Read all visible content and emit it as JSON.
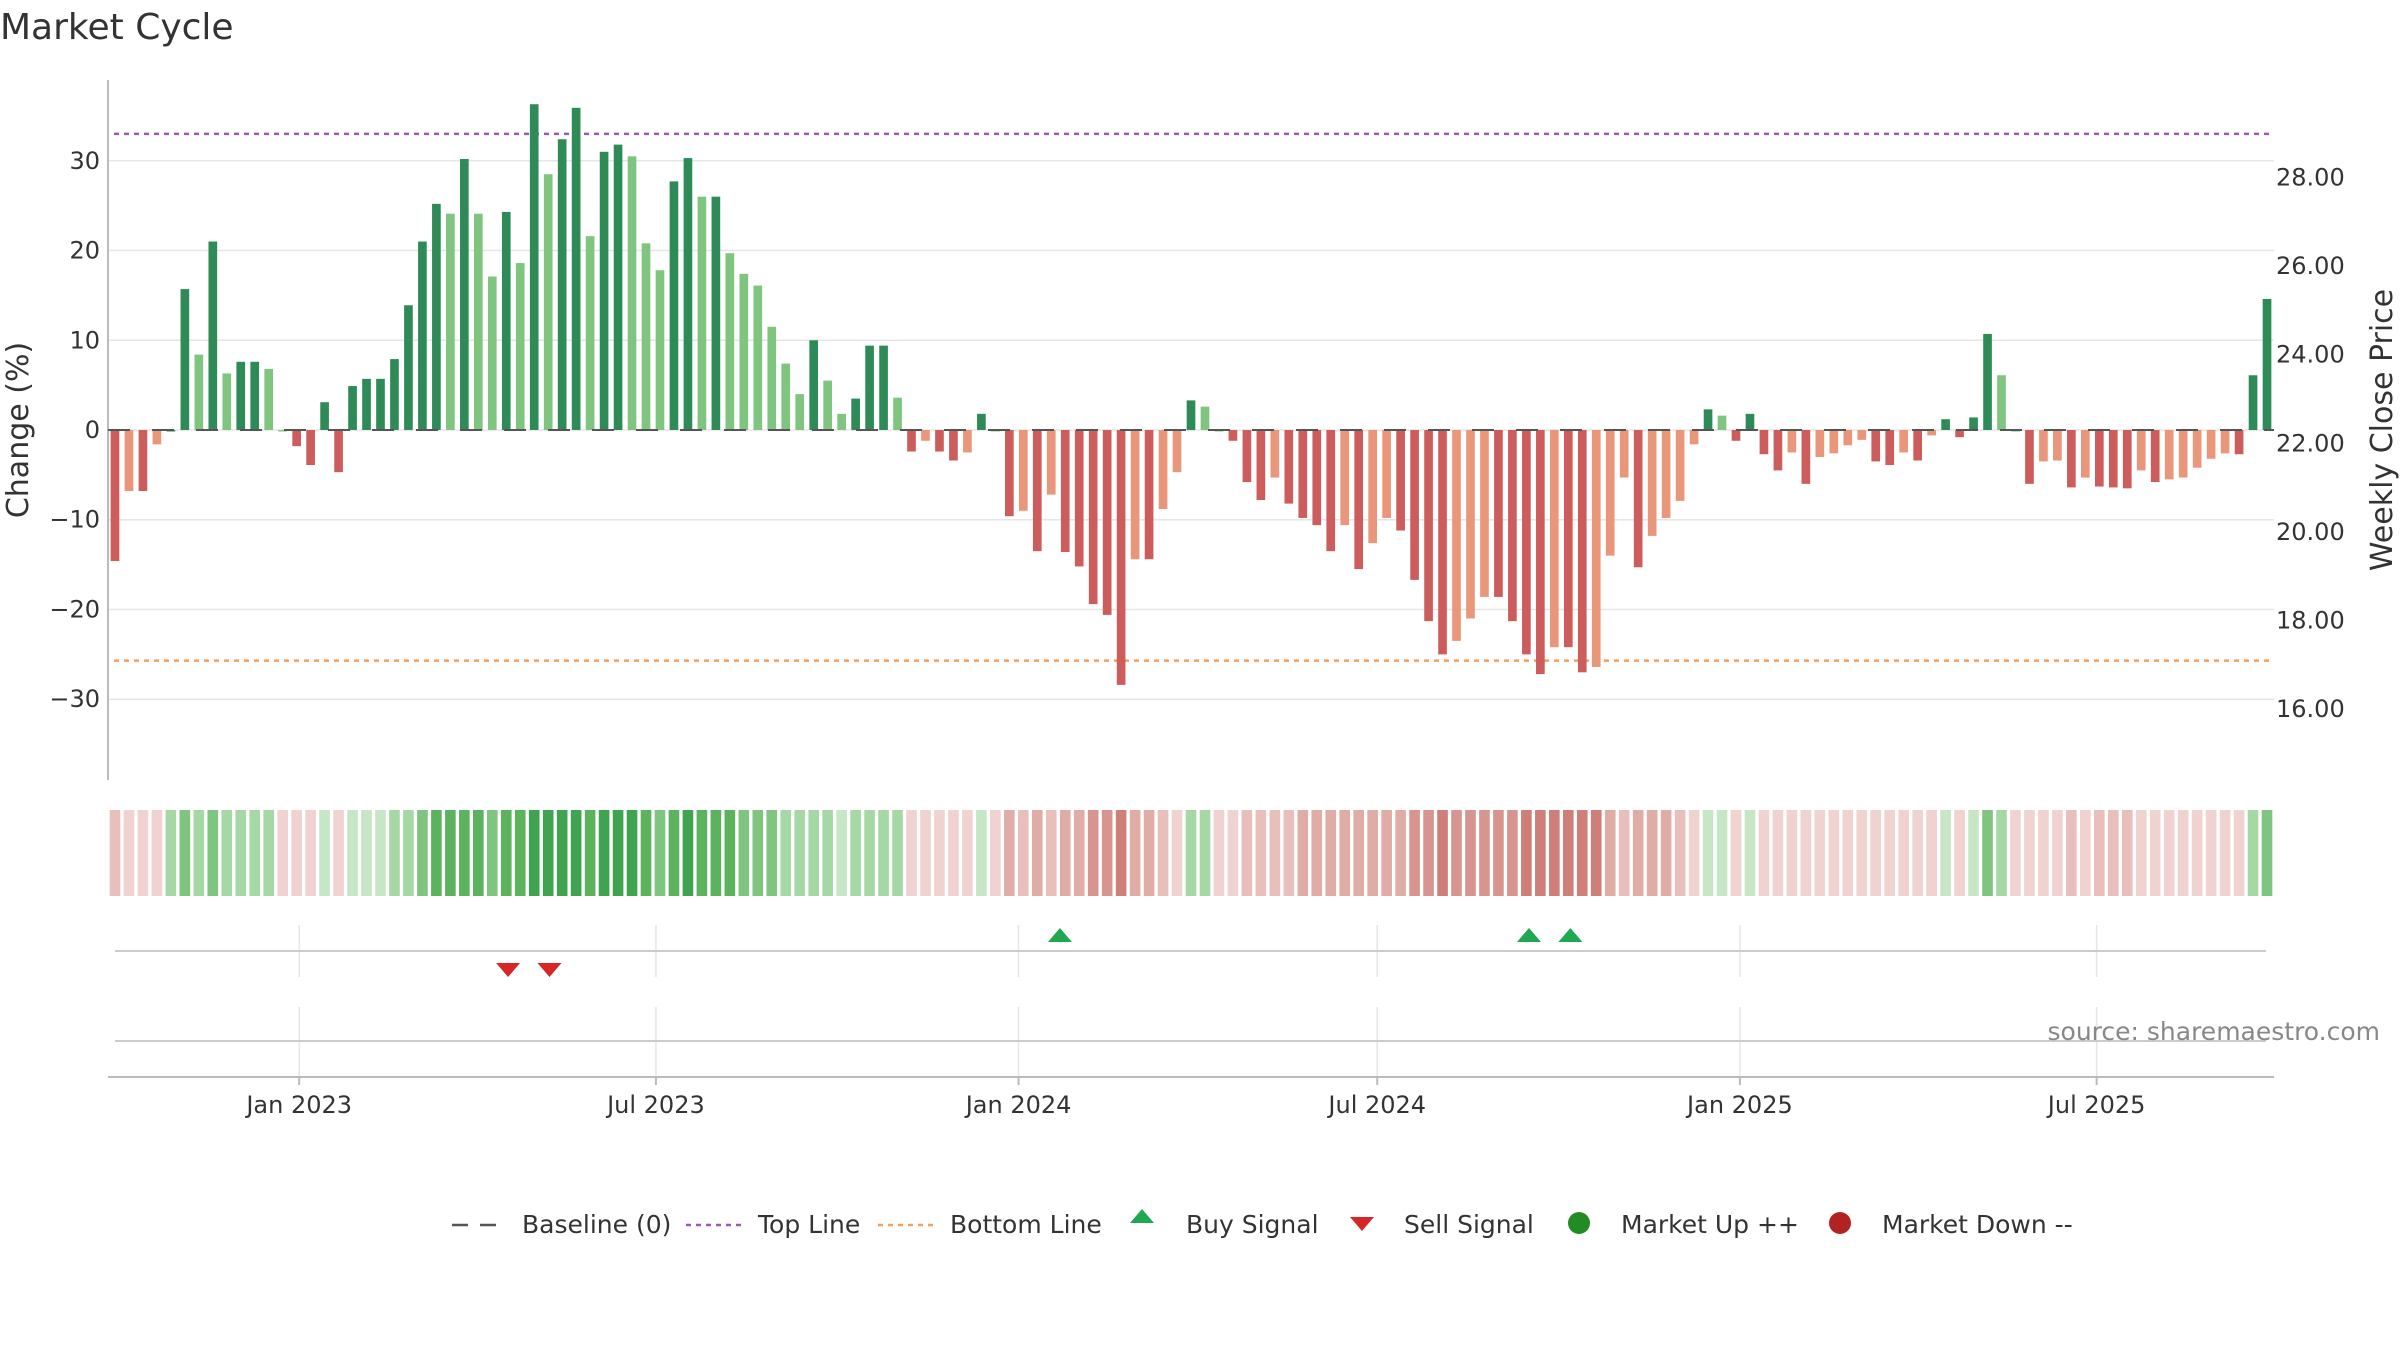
{
  "chart_data": {
    "type": "bar",
    "title": "Market Cycle",
    "ylabel": "Change (%)",
    "y2label": "Weekly Close Price",
    "ylim": [
      -39,
      39
    ],
    "y_ticks": [
      30,
      20,
      10,
      0,
      -10,
      -20,
      -30
    ],
    "y_tick_labels": [
      "30",
      "20",
      "10",
      "0",
      "−10",
      "−20",
      "−30"
    ],
    "y2lim": [
      14.4,
      30.2
    ],
    "y2_ticks": [
      28,
      26,
      24,
      22,
      20,
      18,
      16
    ],
    "y2_tick_labels": [
      "28.00",
      "26.00",
      "24.00",
      "22.00",
      "20.00",
      "18.00",
      "16.00"
    ],
    "x_start": "2022-09-26",
    "x_end": "2025-09-29",
    "x_ticks": [
      {
        "date": "2023-01-01",
        "label": "Jan 2023"
      },
      {
        "date": "2023-07-01",
        "label": "Jul 2023"
      },
      {
        "date": "2024-01-01",
        "label": "Jan 2024"
      },
      {
        "date": "2024-07-01",
        "label": "Jul 2024"
      },
      {
        "date": "2025-01-01",
        "label": "Jan 2025"
      },
      {
        "date": "2025-07-01",
        "label": "Jul 2025"
      }
    ],
    "grid": true,
    "top_line": 33,
    "bottom_line": -25.7,
    "values": [
      -14.6,
      -6.8,
      -6.8,
      -1.6,
      0.0,
      15.7,
      8.4,
      21.0,
      6.3,
      7.6,
      7.6,
      6.8,
      0.0,
      -1.8,
      -3.9,
      3.1,
      -4.7,
      4.9,
      5.7,
      5.7,
      7.9,
      13.9,
      21.0,
      25.2,
      24.1,
      30.2,
      24.1,
      17.1,
      24.3,
      18.6,
      36.3,
      28.5,
      32.4,
      35.9,
      21.6,
      31.0,
      31.8,
      30.5,
      20.8,
      17.8,
      27.7,
      30.3,
      26.0,
      26.0,
      19.7,
      17.4,
      16.1,
      11.5,
      7.4,
      4.0,
      10.0,
      5.5,
      1.8,
      3.5,
      9.4,
      9.4,
      3.6,
      -2.4,
      -1.2,
      -2.4,
      -3.4,
      -2.5,
      1.8,
      0.0,
      -9.6,
      -9.0,
      -13.5,
      -7.2,
      -13.6,
      -15.2,
      -19.4,
      -20.6,
      -28.4,
      -14.4,
      -14.4,
      -8.8,
      -4.7,
      3.3,
      2.6,
      0.0,
      -1.2,
      -5.8,
      -7.8,
      -5.3,
      -8.2,
      -9.8,
      -10.6,
      -13.5,
      -10.6,
      -15.5,
      -12.6,
      -9.8,
      -11.2,
      -16.7,
      -21.3,
      -25.0,
      -23.5,
      -21.0,
      -18.6,
      -18.6,
      -21.3,
      -25.0,
      -27.2,
      -24.2,
      -24.2,
      -27.0,
      -26.4,
      -14.0,
      -5.3,
      -15.3,
      -11.8,
      -9.8,
      -7.9,
      -1.6,
      2.3,
      1.6,
      -1.2,
      1.8,
      -2.7,
      -4.5,
      -2.5,
      -6.0,
      -3.0,
      -2.6,
      -1.7,
      -1.1,
      -3.5,
      -3.9,
      -2.5,
      -3.4,
      -0.6,
      1.2,
      -0.8,
      1.4,
      10.7,
      6.1,
      0.0,
      -6.0,
      -3.5,
      -3.4,
      -6.4,
      -5.3,
      -6.3,
      -6.4,
      -6.5,
      -4.5,
      -5.8,
      -5.5,
      -5.3,
      -4.2,
      -3.2,
      -2.6,
      -2.7,
      6.1,
      14.6
    ],
    "heat_strip": [
      -2,
      -1,
      -1,
      -1,
      2,
      3,
      2,
      3,
      2,
      2,
      2,
      2,
      -1,
      -1,
      -1,
      1,
      -1,
      1,
      1,
      1,
      2,
      2,
      3,
      4,
      4,
      4,
      4,
      3,
      4,
      4,
      5,
      5,
      5,
      5,
      4,
      5,
      5,
      5,
      4,
      3,
      4,
      5,
      4,
      4,
      4,
      3,
      3,
      3,
      2,
      2,
      2,
      2,
      1,
      2,
      2,
      2,
      2,
      -1,
      -1,
      -1,
      -1,
      -1,
      1,
      -1,
      -3,
      -2,
      -3,
      -2,
      -3,
      -3,
      -4,
      -4,
      -5,
      -3,
      -3,
      -2,
      -1,
      2,
      2,
      -1,
      -1,
      -2,
      -2,
      -2,
      -2,
      -3,
      -3,
      -3,
      -3,
      -3,
      -3,
      -3,
      -3,
      -4,
      -4,
      -5,
      -4,
      -4,
      -4,
      -4,
      -4,
      -5,
      -5,
      -5,
      -5,
      -5,
      -5,
      -3,
      -2,
      -3,
      -3,
      -3,
      -2,
      -1,
      1,
      1,
      -1,
      1,
      -1,
      -1,
      -1,
      -1,
      -1,
      -1,
      -1,
      -1,
      -1,
      -1,
      -1,
      -1,
      -1,
      1,
      -1,
      1,
      3,
      2,
      -1,
      -1,
      -1,
      -1,
      -2,
      -1,
      -2,
      -2,
      -2,
      -1,
      -1,
      -1,
      -1,
      -1,
      -1,
      -1,
      -1,
      2,
      3
    ],
    "buy_signals": [
      "2024-01-22",
      "2024-09-16",
      "2024-10-07"
    ],
    "sell_signals": [
      "2023-04-17",
      "2023-05-08"
    ],
    "source": "source: sharemaestro.com",
    "legend": [
      {
        "label": "Baseline (0)",
        "kind": "baseline"
      },
      {
        "label": "Top Line",
        "kind": "top"
      },
      {
        "label": "Bottom Line",
        "kind": "bottom"
      },
      {
        "label": "Buy Signal",
        "kind": "buy"
      },
      {
        "label": "Sell Signal",
        "kind": "sell"
      },
      {
        "label": "Market Up ++",
        "kind": "up"
      },
      {
        "label": "Market Down --",
        "kind": "down"
      }
    ],
    "colors": {
      "strong_up": "#2e8b57",
      "mild_up": "#7fc47f",
      "strong_down": "#cd5c5c",
      "mild_down": "#e9967a",
      "top_line": "#9b59b6",
      "bottom_line": "#f0a060",
      "buy": "#1fa84f",
      "sell": "#d62728",
      "market_up": "#228b22",
      "market_down": "#b22222",
      "grid": "#e6e6e6",
      "axis": "#bbbbbb",
      "baseline": "#555555"
    }
  }
}
